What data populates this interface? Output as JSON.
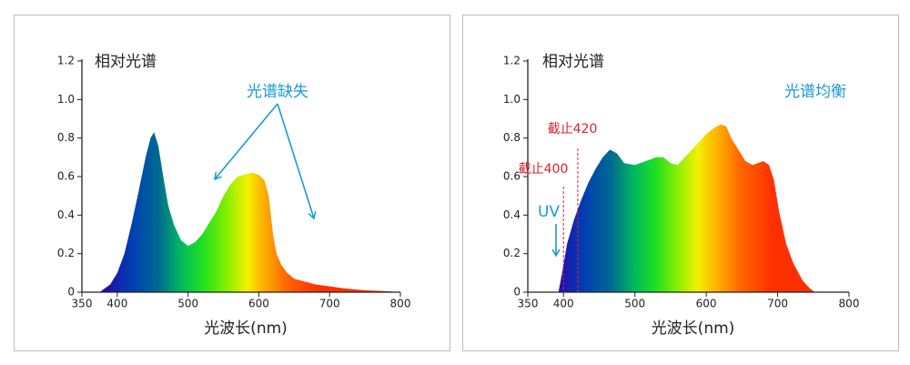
{
  "chart_data": [
    {
      "type": "area",
      "title": "相对光谱",
      "x_label": "光波长(nm)",
      "x": [
        375,
        390,
        400,
        410,
        420,
        430,
        440,
        447,
        452,
        458,
        465,
        472,
        480,
        490,
        500,
        510,
        520,
        530,
        540,
        550,
        560,
        570,
        580,
        590,
        600,
        608,
        614,
        620,
        625,
        632,
        640,
        650,
        660,
        680,
        700,
        720,
        750,
        780,
        800
      ],
      "values": [
        0,
        0.04,
        0.1,
        0.2,
        0.35,
        0.52,
        0.7,
        0.8,
        0.83,
        0.76,
        0.6,
        0.45,
        0.35,
        0.27,
        0.24,
        0.26,
        0.3,
        0.36,
        0.42,
        0.5,
        0.56,
        0.6,
        0.61,
        0.62,
        0.61,
        0.58,
        0.5,
        0.3,
        0.2,
        0.14,
        0.1,
        0.07,
        0.06,
        0.04,
        0.03,
        0.02,
        0.01,
        0.005,
        0
      ],
      "xlim": [
        350,
        800
      ],
      "xticks": [
        350,
        400,
        500,
        600,
        700,
        800
      ],
      "ylim": [
        0,
        1.2
      ],
      "yticks": [
        0,
        0.2,
        0.4,
        0.6,
        0.8,
        {
          "value": 1,
          "label": "1.0"
        },
        1.2
      ],
      "annotations": [
        "光谱缺失"
      ]
    },
    {
      "type": "area",
      "title": "相对光谱",
      "x_label": "光波长(nm)",
      "x": [
        393,
        398,
        405,
        415,
        425,
        435,
        445,
        455,
        465,
        475,
        485,
        500,
        515,
        530,
        540,
        550,
        560,
        570,
        580,
        590,
        600,
        610,
        620,
        628,
        635,
        645,
        655,
        665,
        672,
        680,
        688,
        695,
        702,
        712,
        722,
        735,
        745,
        752
      ],
      "values": [
        0,
        0.1,
        0.25,
        0.38,
        0.48,
        0.57,
        0.64,
        0.7,
        0.74,
        0.72,
        0.67,
        0.66,
        0.68,
        0.7,
        0.7,
        0.67,
        0.66,
        0.7,
        0.74,
        0.78,
        0.82,
        0.85,
        0.87,
        0.86,
        0.8,
        0.74,
        0.68,
        0.66,
        0.67,
        0.68,
        0.66,
        0.58,
        0.42,
        0.25,
        0.15,
        0.06,
        0.02,
        0
      ],
      "xlim": [
        350,
        800
      ],
      "xticks": [
        350,
        400,
        500,
        600,
        700,
        800
      ],
      "ylim": [
        0,
        1.2
      ],
      "yticks": [
        0,
        0.2,
        0.4,
        0.6,
        0.8,
        {
          "value": 1,
          "label": "1.0"
        },
        1.2
      ],
      "annotations": [
        "光谱均衡",
        "UV"
      ],
      "cutoffs": [
        {
          "label": "截止420",
          "x": 420
        },
        {
          "label": "截止400",
          "x": 400
        }
      ]
    }
  ]
}
